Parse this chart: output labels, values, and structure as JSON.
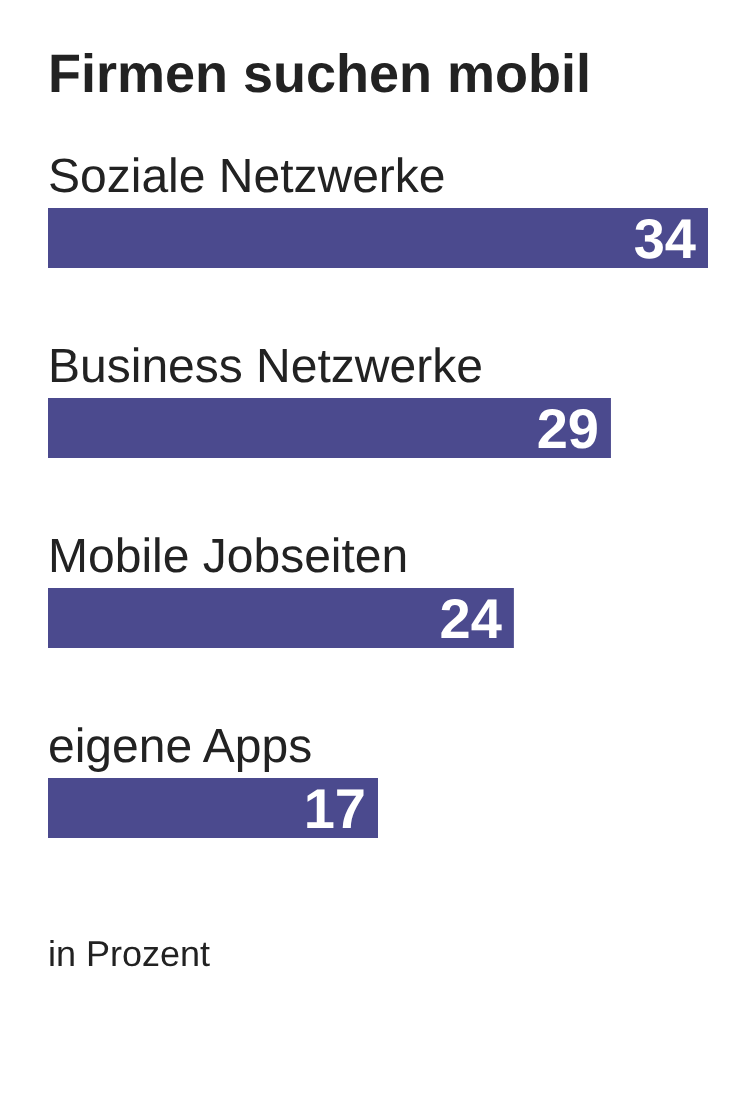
{
  "chart_data": {
    "type": "bar",
    "orientation": "horizontal",
    "title": "Firmen suchen mobil",
    "categories": [
      "Soziale Netzwerke",
      "Business Netzwerke",
      "Mobile Jobseiten",
      "eigene Apps"
    ],
    "values": [
      34,
      29,
      24,
      17
    ],
    "color": "#4b4a8e",
    "data_labels": true,
    "grid": false,
    "annotations": [
      "in Prozent"
    ]
  }
}
